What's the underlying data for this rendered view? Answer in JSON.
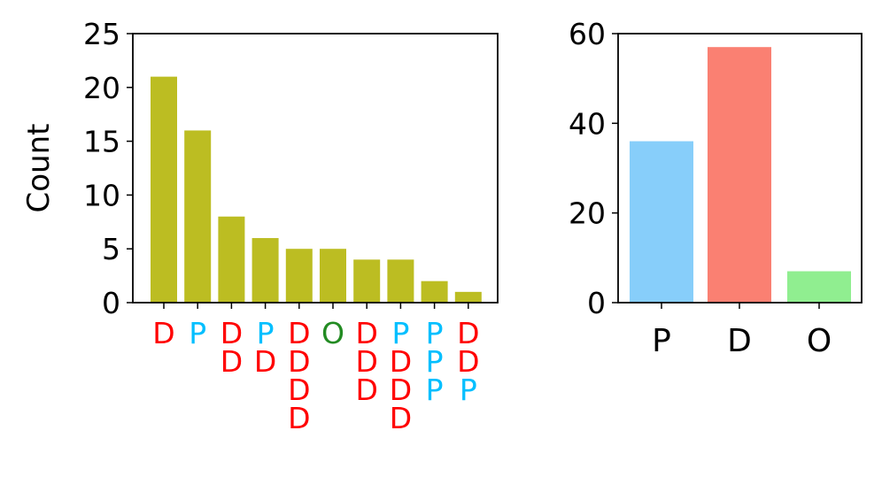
{
  "colors": {
    "D": "#ff0000",
    "P": "#00bfff",
    "O": "#228b22",
    "left_bar": "#bcbd22",
    "axis": "#000000"
  },
  "chart_data": [
    {
      "type": "bar",
      "title": "",
      "xlabel": "",
      "ylabel": "Count",
      "ylim": [
        0,
        25
      ],
      "yticks": [
        0,
        5,
        10,
        15,
        20,
        25
      ],
      "categories": [
        [
          "D"
        ],
        [
          "P"
        ],
        [
          "D",
          "D"
        ],
        [
          "P",
          "D"
        ],
        [
          "D",
          "D",
          "D",
          "D"
        ],
        [
          "O"
        ],
        [
          "D",
          "D",
          "D"
        ],
        [
          "P",
          "D",
          "D",
          "D"
        ],
        [
          "P",
          "P",
          "P"
        ],
        [
          "D",
          "D",
          "P"
        ]
      ],
      "values": [
        21,
        16,
        8,
        6,
        5,
        5,
        4,
        4,
        2,
        1
      ],
      "bar_color": "#bcbd22"
    },
    {
      "type": "bar",
      "title": "",
      "xlabel": "",
      "ylabel": "",
      "ylim": [
        0,
        60
      ],
      "yticks": [
        0,
        20,
        40,
        60
      ],
      "categories": [
        "P",
        "D",
        "O"
      ],
      "values": [
        36,
        57,
        7
      ],
      "bar_colors": [
        "#87cefa",
        "#fa8072",
        "#90ee90"
      ]
    }
  ]
}
